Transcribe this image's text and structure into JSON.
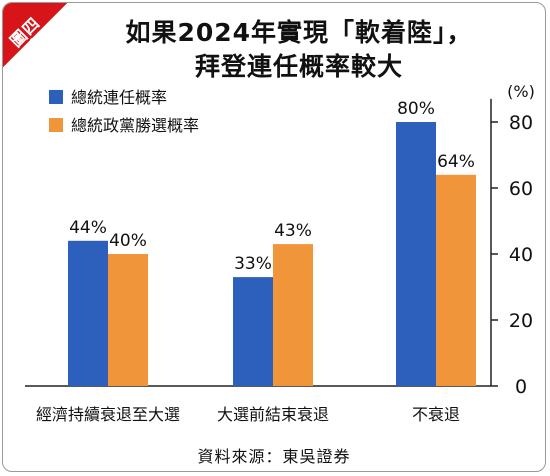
{
  "badge": "圖四",
  "title": {
    "line1": "如果2024年實現「軟着陸」，",
    "line2": "拜登連任概率較大"
  },
  "source": "資料來源：東吳證券",
  "colors": {
    "series_1": "#2d5fbd",
    "series_2": "#f0953a",
    "badge": "#d7141a"
  },
  "chart_data": {
    "type": "bar",
    "categories": [
      "經濟持續衰退至大選",
      "大選前結束衰退",
      "不衰退"
    ],
    "series": [
      {
        "name": "總統連任概率",
        "values": [
          44,
          33,
          80
        ],
        "labels": [
          "44%",
          "33%",
          "80%"
        ]
      },
      {
        "name": "總統政黨勝選概率",
        "values": [
          40,
          43,
          64
        ],
        "labels": [
          "40%",
          "43%",
          "64%"
        ]
      }
    ],
    "y_unit": "(%)",
    "ylim": [
      0,
      87
    ],
    "yticks": [
      0,
      20,
      40,
      60,
      80
    ],
    "y_axis_side": "right",
    "grid": false,
    "legend_position": "top-left"
  }
}
